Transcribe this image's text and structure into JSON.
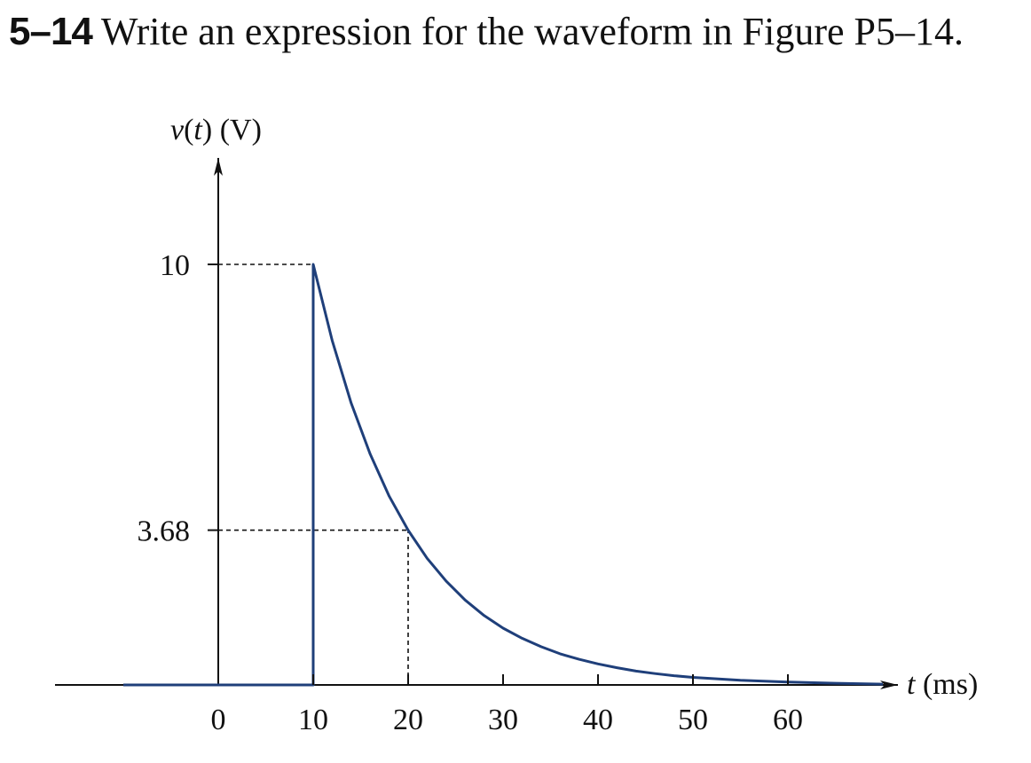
{
  "problem": {
    "number": "5–14",
    "text": "Write an expression for the waveform in Figure P5–14."
  },
  "chart_data": {
    "type": "line",
    "ylabel_fn": "v",
    "ylabel_arg": "t",
    "ylabel_unit": "(V)",
    "xlabel_var": "t",
    "xlabel_unit": "(ms)",
    "xlim": [
      -10,
      70
    ],
    "ylim": [
      0,
      10
    ],
    "x_ticks": [
      0,
      10,
      20,
      30,
      40,
      50,
      60
    ],
    "x_tick_labels": [
      "0",
      "10",
      "20",
      "30",
      "40",
      "50",
      "60"
    ],
    "y_ticks": [
      10,
      3.68
    ],
    "y_tick_labels": [
      "10",
      "3.68"
    ],
    "grid": false,
    "series": [
      {
        "color": "#1f3f7a",
        "x": [
          -10,
          0,
          10,
          10,
          12,
          14,
          16,
          18,
          20,
          22,
          24,
          26,
          28,
          30,
          32,
          34,
          36,
          38,
          40,
          42,
          44,
          46,
          48,
          50,
          55,
          60,
          65,
          70
        ],
        "y": [
          0,
          0,
          0,
          10,
          8.19,
          6.7,
          5.49,
          4.49,
          3.68,
          3.01,
          2.47,
          2.02,
          1.65,
          1.35,
          1.11,
          0.91,
          0.74,
          0.61,
          0.5,
          0.41,
          0.33,
          0.27,
          0.22,
          0.18,
          0.11,
          0.07,
          0.04,
          0.02
        ]
      }
    ],
    "reference_lines": [
      {
        "from": [
          0,
          10
        ],
        "to": [
          10,
          10
        ]
      },
      {
        "from": [
          0,
          3.68
        ],
        "to": [
          20,
          3.68
        ]
      },
      {
        "from": [
          20,
          0
        ],
        "to": [
          20,
          3.68
        ]
      }
    ]
  }
}
